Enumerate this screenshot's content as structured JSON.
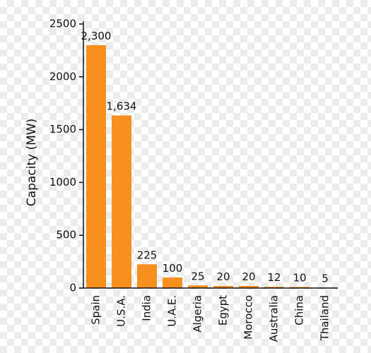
{
  "chart_data": {
    "type": "bar",
    "y_label": "Capacity (MW)",
    "categories": [
      "Spain",
      "U.S.A.",
      "India",
      "U.A.E.",
      "Algeria",
      "Egypt",
      "Morocco",
      "Australia",
      "China",
      "Thailand"
    ],
    "values": [
      2300,
      1634,
      225,
      100,
      25,
      20,
      20,
      12,
      10,
      5
    ],
    "value_labels": [
      "2,300",
      "1,634",
      "225",
      "100",
      "25",
      "20",
      "20",
      "12",
      "10",
      "5"
    ],
    "color": "#f7901e",
    "ylim": [
      0,
      2500
    ],
    "yticks": [
      0,
      500,
      1000,
      1500,
      2000,
      2500
    ],
    "grid": false
  }
}
